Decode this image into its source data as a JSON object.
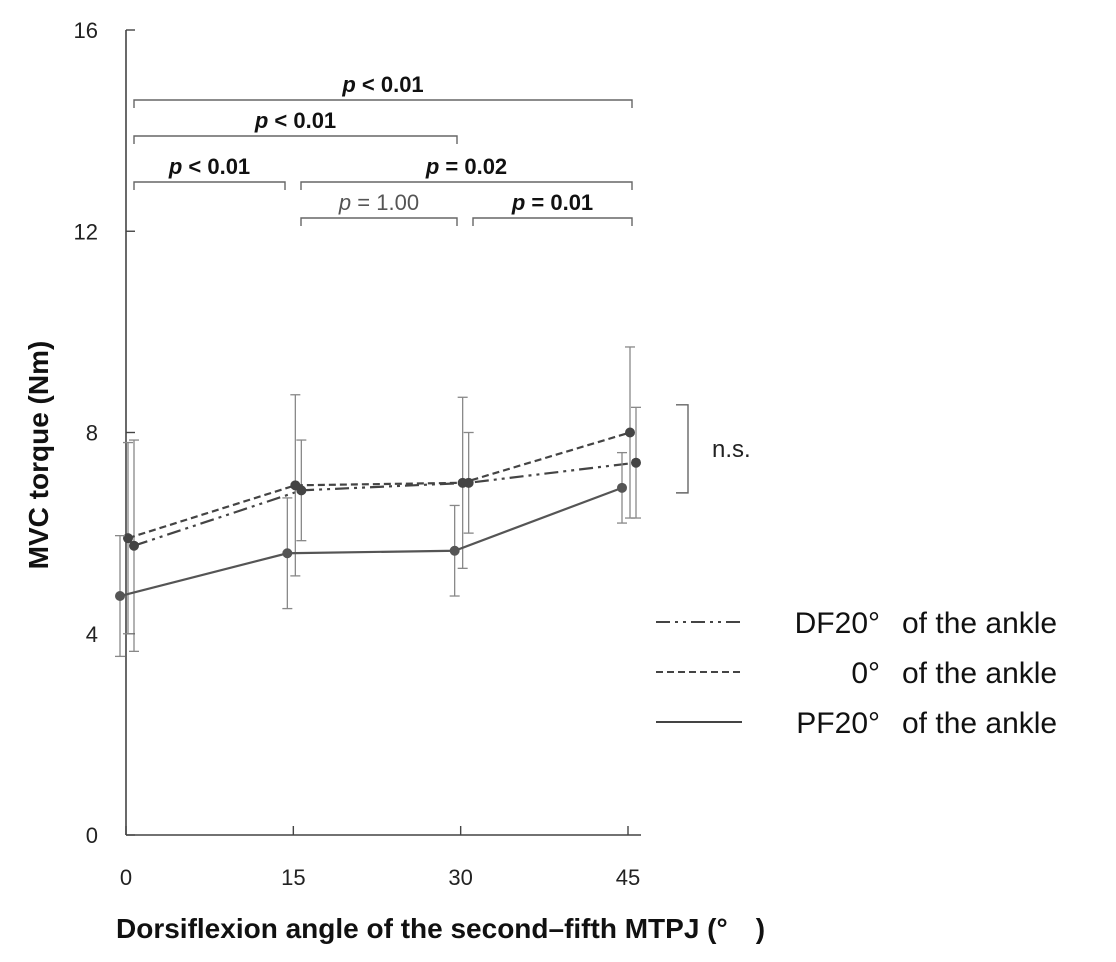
{
  "chart_data": {
    "type": "line",
    "title": "",
    "xlabel": "Dorsiflexion angle of the second–fifth MTPJ (°  )",
    "ylabel": "MVC torque (Nm)",
    "x": [
      0,
      15,
      30,
      45
    ],
    "x_tick_labels": [
      "0",
      "15",
      "30",
      "45"
    ],
    "ylim": [
      0,
      16
    ],
    "y_ticks": [
      0,
      4,
      8,
      12,
      16
    ],
    "y_tick_labels": [
      "0",
      "4",
      "8",
      "12",
      "16"
    ],
    "grid": false,
    "legend_position": "right",
    "series": [
      {
        "name": "DF20° of the ankle",
        "legend_angle": "DF20°",
        "legend_suffix": "of the ankle",
        "style": "dash-dot-dot",
        "values": [
          5.75,
          6.85,
          7.0,
          7.4
        ],
        "error": [
          2.1,
          1.0,
          1.0,
          1.1
        ]
      },
      {
        "name": "0° of the ankle",
        "legend_angle": "0°",
        "legend_suffix": "of the ankle",
        "style": "dashed",
        "values": [
          5.9,
          6.95,
          7.0,
          8.0
        ],
        "error": [
          1.9,
          1.8,
          1.7,
          1.7
        ]
      },
      {
        "name": "PF20° of the ankle",
        "legend_angle": "PF20°",
        "legend_suffix": "of the ankle",
        "style": "solid",
        "values": [
          4.75,
          5.6,
          5.65,
          6.9
        ],
        "error": [
          1.2,
          1.1,
          0.9,
          0.7
        ]
      }
    ],
    "annotations": [
      {
        "from": 0,
        "to": 45,
        "label_p": "p",
        "label_rest": " < 0.01",
        "bold": true
      },
      {
        "from": 0,
        "to": 30,
        "label_p": "p",
        "label_rest": " < 0.01",
        "bold": true
      },
      {
        "from": 0,
        "to": 15,
        "label_p": "p",
        "label_rest": " < 0.01",
        "bold": true
      },
      {
        "from": 15,
        "to": 45,
        "label_p": "p",
        "label_rest": " = 0.02",
        "bold": true
      },
      {
        "from": 15,
        "to": 30,
        "label_p": "p",
        "label_rest": " = 1.00",
        "bold": false
      },
      {
        "from": 30,
        "to": 45,
        "label_p": "p",
        "label_rest": " = 0.01",
        "bold": true
      }
    ],
    "ns_label": "n.s."
  }
}
